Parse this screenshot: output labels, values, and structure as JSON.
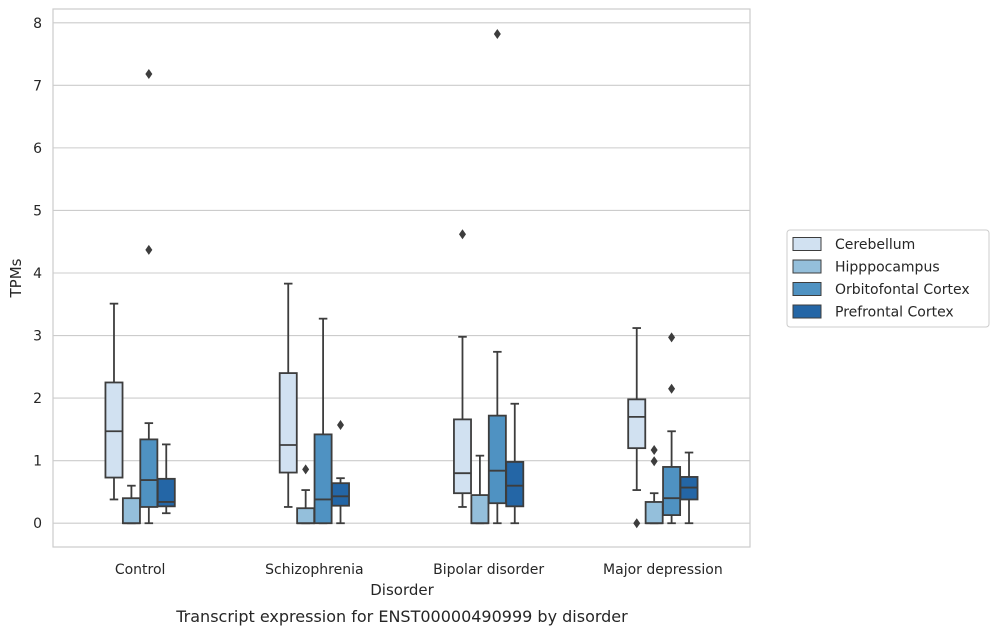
{
  "chart_data": {
    "type": "box",
    "xlabel": "Disorder",
    "ylabel": "TPMs",
    "caption": "Transcript expression for ENST00000490999 by disorder",
    "ylim": [
      -0.38,
      8.22
    ],
    "yticks": [
      0,
      1,
      2,
      3,
      4,
      5,
      6,
      7,
      8
    ],
    "grid": "horizontal",
    "legend_position": "right",
    "categories": [
      "Control",
      "Schizophrenia",
      "Bipolar disorder",
      "Major depression"
    ],
    "series": [
      {
        "name": "Cerebellum",
        "color": "#d1e1f1",
        "boxes": [
          {
            "low": 0.38,
            "q1": 0.73,
            "median": 1.47,
            "q3": 2.25,
            "high": 3.51,
            "outliers": []
          },
          {
            "low": 0.26,
            "q1": 0.81,
            "median": 1.25,
            "q3": 2.4,
            "high": 3.83,
            "outliers": []
          },
          {
            "low": 0.26,
            "q1": 0.48,
            "median": 0.8,
            "q3": 1.66,
            "high": 2.98,
            "outliers": [
              4.62
            ]
          },
          {
            "low": 0.53,
            "q1": 1.2,
            "median": 1.7,
            "q3": 1.98,
            "high": 3.12,
            "outliers": [
              0.0
            ]
          }
        ]
      },
      {
        "name": "Hipppocampus",
        "color": "#94bfdb",
        "boxes": [
          {
            "low": 0.0,
            "q1": 0.0,
            "median": 0.0,
            "q3": 0.4,
            "high": 0.6,
            "outliers": []
          },
          {
            "low": 0.0,
            "q1": 0.0,
            "median": 0.0,
            "q3": 0.24,
            "high": 0.53,
            "outliers": [
              0.86
            ]
          },
          {
            "low": 0.0,
            "q1": 0.0,
            "median": 0.0,
            "q3": 0.45,
            "high": 1.08,
            "outliers": []
          },
          {
            "low": 0.0,
            "q1": 0.0,
            "median": 0.0,
            "q3": 0.34,
            "high": 0.48,
            "outliers": [
              0.99,
              1.17
            ]
          }
        ]
      },
      {
        "name": "Orbitofontal Cortex",
        "color": "#4f92c2",
        "boxes": [
          {
            "low": 0.0,
            "q1": 0.26,
            "median": 0.69,
            "q3": 1.34,
            "high": 1.6,
            "outliers": [
              4.37,
              7.18
            ]
          },
          {
            "low": 0.0,
            "q1": 0.0,
            "median": 0.38,
            "q3": 1.42,
            "high": 3.27,
            "outliers": []
          },
          {
            "low": 0.0,
            "q1": 0.32,
            "median": 0.84,
            "q3": 1.72,
            "high": 2.74,
            "outliers": [
              7.82
            ]
          },
          {
            "low": 0.0,
            "q1": 0.13,
            "median": 0.4,
            "q3": 0.9,
            "high": 1.47,
            "outliers": [
              2.15,
              2.97
            ]
          }
        ]
      },
      {
        "name": "Prefrontal Cortex",
        "color": "#2466a6",
        "boxes": [
          {
            "low": 0.16,
            "q1": 0.27,
            "median": 0.34,
            "q3": 0.71,
            "high": 1.26,
            "outliers": []
          },
          {
            "low": 0.0,
            "q1": 0.28,
            "median": 0.43,
            "q3": 0.64,
            "high": 0.72,
            "outliers": [
              1.57
            ]
          },
          {
            "low": 0.0,
            "q1": 0.27,
            "median": 0.6,
            "q3": 0.98,
            "high": 1.91,
            "outliers": []
          },
          {
            "low": 0.0,
            "q1": 0.38,
            "median": 0.57,
            "q3": 0.74,
            "high": 1.13,
            "outliers": []
          }
        ]
      }
    ]
  }
}
